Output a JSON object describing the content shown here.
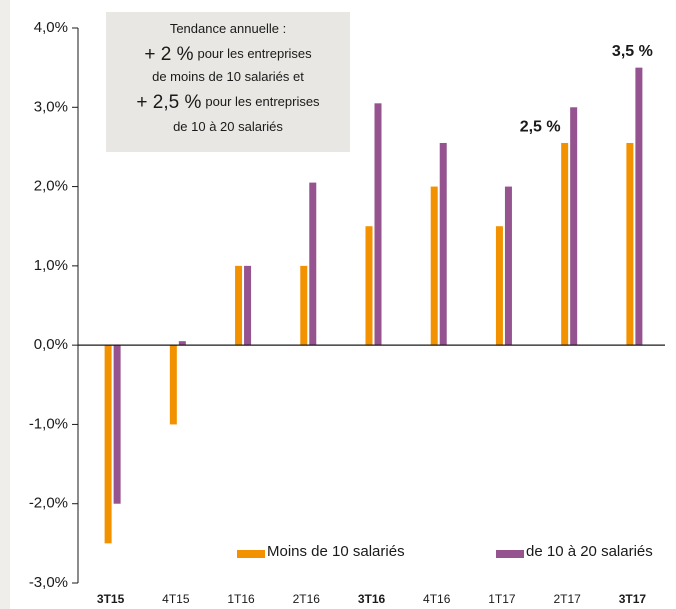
{
  "chart_data": {
    "type": "bar",
    "categories": [
      "3T15",
      "4T15",
      "1T16",
      "2T16",
      "3T16",
      "4T16",
      "1T17",
      "2T17",
      "3T17"
    ],
    "bold_category_indices": [
      0,
      4,
      8
    ],
    "series": [
      {
        "name": "Moins de 10 salariés",
        "color": "#f39200",
        "values": [
          -2.5,
          -1.0,
          1.0,
          1.0,
          1.5,
          2.0,
          1.5,
          2.55,
          2.55
        ]
      },
      {
        "name": "de 10 à 20 salariés",
        "color": "#95538f",
        "values": [
          -2.0,
          0.05,
          1.0,
          2.05,
          3.05,
          2.55,
          2.0,
          3.0,
          3.5
        ]
      }
    ],
    "ylim": [
      -3,
      4
    ],
    "yticks": [
      {
        "value": -3,
        "label": "-3,0%"
      },
      {
        "value": -2,
        "label": "-2,0%"
      },
      {
        "value": -1,
        "label": "-1,0%"
      },
      {
        "value": 0,
        "label": "0,0%"
      },
      {
        "value": 1,
        "label": "1,0%"
      },
      {
        "value": 2,
        "label": "2,0%"
      },
      {
        "value": 3,
        "label": "3,0%"
      },
      {
        "value": 4,
        "label": "4,0%"
      }
    ],
    "legend": "lower right",
    "note_lines": [
      [
        {
          "text": "Tendance annuelle :"
        }
      ],
      [
        {
          "text": "+ 2 %",
          "large": true
        },
        {
          "text": "pour les entreprises"
        }
      ],
      [
        {
          "text": "de moins de 10 salariés et"
        }
      ],
      [
        {
          "text": "+ 2,5 %",
          "large": true
        },
        {
          "text": "pour les entreprises"
        }
      ],
      [
        {
          "text": "de 10 à 20 salariés"
        }
      ]
    ],
    "annotations": [
      {
        "text": "2,5 %",
        "category": 7,
        "y": 2.75
      },
      {
        "text": "3,5 %",
        "category": 8,
        "y": 3.7
      }
    ]
  }
}
